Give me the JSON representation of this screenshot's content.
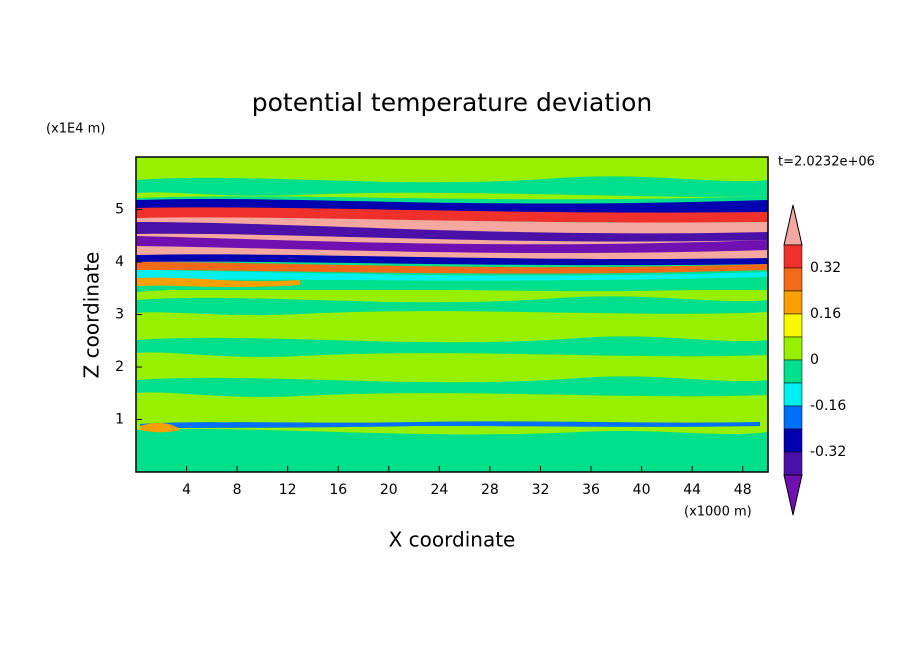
{
  "chart_data": {
    "type": "contour",
    "title": "potential temperature deviation",
    "time_label": "t=2.0232e+06",
    "x_label": "X coordinate",
    "y_label": "Z coordinate",
    "x_unit": "(x1000 m)",
    "y_unit": "(x1E4 m)",
    "xlim": [
      0,
      50
    ],
    "ylim": [
      0,
      6
    ],
    "xticks": [
      4,
      8,
      12,
      16,
      20,
      24,
      28,
      32,
      36,
      40,
      44,
      48
    ],
    "yticks": [
      1,
      2,
      3,
      4,
      5
    ],
    "colorbar": {
      "levels": [
        0.32,
        0.16,
        0,
        -0.16,
        -0.32
      ],
      "colors": [
        "#f4a8a0",
        "#f0302a",
        "#f06a18",
        "#f8a000",
        "#f8f800",
        "#96f000",
        "#00e08c",
        "#00f0f0",
        "#0070f8",
        "#0000b0",
        "#4a10a8",
        "#7010b0"
      ]
    }
  }
}
